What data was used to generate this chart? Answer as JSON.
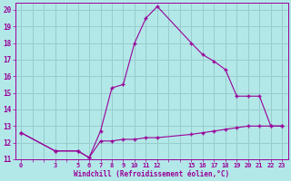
{
  "upper_x": [
    0,
    3,
    5,
    6,
    7,
    8,
    9,
    10,
    11,
    12,
    15,
    16,
    17,
    18,
    19,
    20,
    21,
    22,
    23
  ],
  "upper_y": [
    12.6,
    11.5,
    11.5,
    11.1,
    12.7,
    15.3,
    15.5,
    18.0,
    19.5,
    20.2,
    18.0,
    17.3,
    16.9,
    16.4,
    14.8,
    14.8,
    14.8,
    13.0,
    13.0
  ],
  "lower_x": [
    0,
    3,
    5,
    6,
    7,
    8,
    9,
    10,
    11,
    12,
    15,
    16,
    17,
    18,
    19,
    20,
    21,
    22,
    23
  ],
  "lower_y": [
    12.6,
    11.5,
    11.5,
    11.1,
    12.1,
    12.1,
    12.2,
    12.2,
    12.3,
    12.3,
    12.5,
    12.6,
    12.7,
    12.8,
    12.9,
    13.0,
    13.0,
    13.0,
    13.0
  ],
  "line_color": "#990099",
  "bg_color": "#b3e8e8",
  "grid_color": "#99cccc",
  "xlabel": "Windchill (Refroidissement éolien,°C)",
  "ylim": [
    11,
    20.4
  ],
  "xlim": [
    -0.5,
    23.5
  ],
  "yticks": [
    11,
    12,
    13,
    14,
    15,
    16,
    17,
    18,
    19,
    20
  ],
  "xticks_all": [
    0,
    1,
    2,
    3,
    4,
    5,
    6,
    7,
    8,
    9,
    10,
    11,
    12,
    13,
    14,
    15,
    16,
    17,
    18,
    19,
    20,
    21,
    22,
    23
  ],
  "xtick_labels_pos": [
    0,
    3,
    5,
    6,
    7,
    8,
    9,
    10,
    11,
    12,
    15,
    16,
    17,
    18,
    19,
    20,
    21,
    22,
    23
  ],
  "xtick_labels": [
    "0",
    "3",
    "5",
    "6",
    "7",
    "8",
    "9",
    "10",
    "11",
    "12",
    "15",
    "16",
    "17",
    "18",
    "19",
    "20",
    "21",
    "22",
    "23"
  ]
}
